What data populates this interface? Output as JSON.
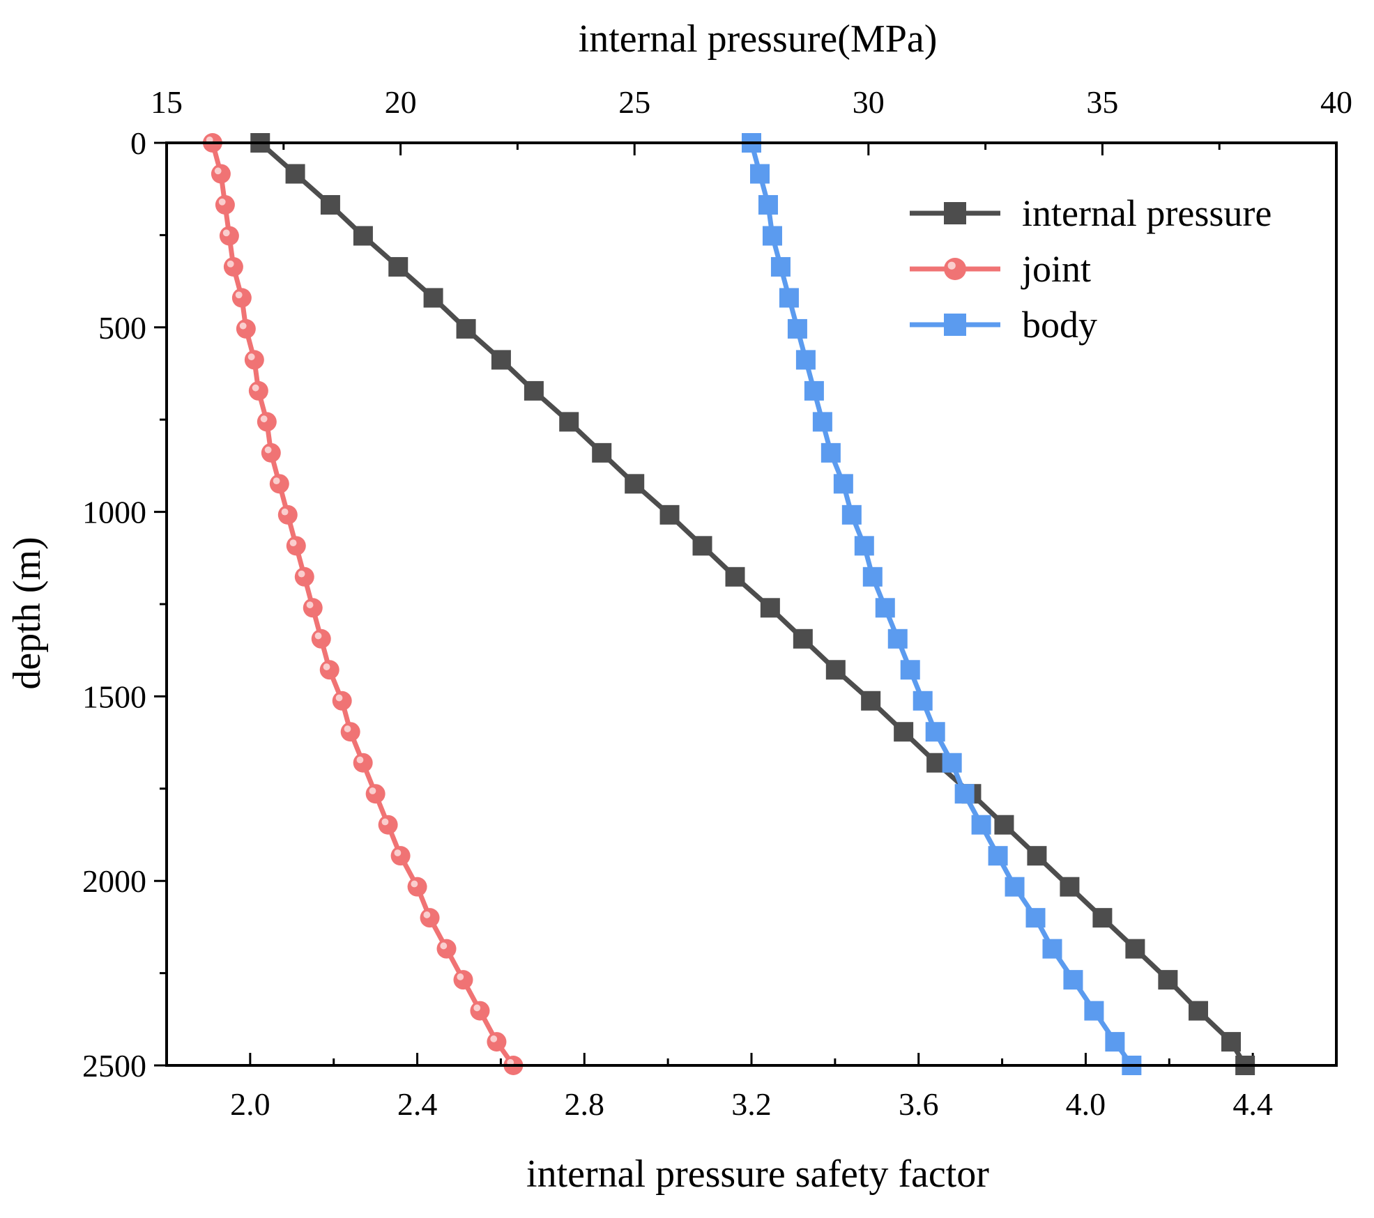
{
  "chart_data": {
    "type": "line",
    "title": "",
    "top_axis": {
      "label": "internal pressure(MPa)",
      "range": [
        15,
        40
      ],
      "ticks": [
        15,
        20,
        25,
        30,
        35,
        40
      ],
      "tick_labels": [
        "15",
        "20",
        "25",
        "30",
        "35",
        "40"
      ]
    },
    "bottom_axis": {
      "label": "internal pressure safety factor",
      "range": [
        1.8,
        4.6
      ],
      "ticks": [
        2.0,
        2.4,
        2.8,
        3.2,
        3.6,
        4.0,
        4.4
      ],
      "tick_labels": [
        "2.0",
        "2.4",
        "2.8",
        "3.2",
        "3.6",
        "4.0",
        "4.4"
      ]
    },
    "left_axis": {
      "label": "depth (m)",
      "range": [
        0,
        2500
      ],
      "inverted": true,
      "ticks": [
        0,
        500,
        1000,
        1500,
        2000,
        2500
      ],
      "tick_labels": [
        "0",
        "500",
        "1000",
        "1500",
        "2000",
        "2500"
      ]
    },
    "legend": {
      "position": "top-right",
      "entries": [
        "internal pressure",
        "joint",
        "body"
      ]
    },
    "series": [
      {
        "name": "internal pressure",
        "axis": "top",
        "color": "#4d4d4d",
        "marker": "square",
        "depth": [
          0,
          84,
          168,
          252,
          336,
          420,
          504,
          588,
          672,
          756,
          840,
          924,
          1008,
          1092,
          1176,
          1260,
          1344,
          1428,
          1512,
          1596,
          1680,
          1764,
          1848,
          1932,
          2016,
          2100,
          2184,
          2268,
          2352,
          2436,
          2500
        ],
        "values": [
          17.0,
          17.75,
          18.5,
          19.2,
          19.95,
          20.7,
          21.4,
          22.15,
          22.85,
          23.6,
          24.3,
          25.0,
          25.75,
          26.45,
          27.15,
          27.9,
          28.6,
          29.3,
          30.05,
          30.75,
          31.45,
          32.2,
          32.9,
          33.6,
          34.3,
          35.0,
          35.7,
          36.4,
          37.05,
          37.75,
          38.05
        ]
      },
      {
        "name": "joint",
        "axis": "bottom",
        "color": "#f07374",
        "marker": "circle",
        "depth": [
          0,
          84,
          168,
          252,
          336,
          420,
          504,
          588,
          672,
          756,
          840,
          924,
          1008,
          1092,
          1176,
          1260,
          1344,
          1428,
          1512,
          1596,
          1680,
          1764,
          1848,
          1932,
          2016,
          2100,
          2184,
          2268,
          2352,
          2436,
          2500
        ],
        "values": [
          1.91,
          1.93,
          1.94,
          1.95,
          1.96,
          1.98,
          1.99,
          2.01,
          2.02,
          2.04,
          2.05,
          2.07,
          2.09,
          2.11,
          2.13,
          2.15,
          2.17,
          2.19,
          2.22,
          2.24,
          2.27,
          2.3,
          2.33,
          2.36,
          2.4,
          2.43,
          2.47,
          2.51,
          2.55,
          2.59,
          2.63
        ]
      },
      {
        "name": "body",
        "axis": "bottom",
        "color": "#5b9bef",
        "marker": "square",
        "depth": [
          0,
          84,
          168,
          252,
          336,
          420,
          504,
          588,
          672,
          756,
          840,
          924,
          1008,
          1092,
          1176,
          1260,
          1344,
          1428,
          1512,
          1596,
          1680,
          1764,
          1848,
          1932,
          2016,
          2100,
          2184,
          2268,
          2352,
          2436,
          2500
        ],
        "values": [
          3.2,
          3.22,
          3.24,
          3.25,
          3.27,
          3.29,
          3.31,
          3.33,
          3.35,
          3.37,
          3.39,
          3.42,
          3.44,
          3.47,
          3.49,
          3.52,
          3.55,
          3.58,
          3.61,
          3.64,
          3.68,
          3.71,
          3.75,
          3.79,
          3.83,
          3.88,
          3.92,
          3.97,
          4.02,
          4.07,
          4.11
        ]
      }
    ]
  }
}
